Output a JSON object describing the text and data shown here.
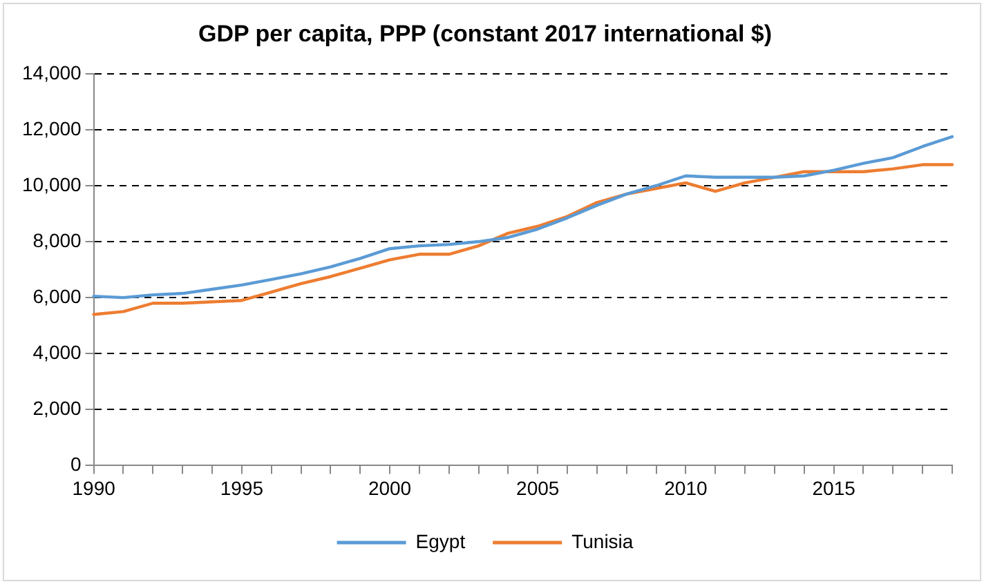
{
  "chart_data": {
    "type": "line",
    "title": "GDP per capita, PPP (constant 2017 international $)",
    "x": [
      1990,
      1991,
      1992,
      1993,
      1994,
      1995,
      1996,
      1997,
      1998,
      1999,
      2000,
      2001,
      2002,
      2003,
      2004,
      2005,
      2006,
      2007,
      2008,
      2009,
      2010,
      2011,
      2012,
      2013,
      2014,
      2015,
      2016,
      2017,
      2018,
      2019
    ],
    "series": [
      {
        "name": "Egypt",
        "color": "#5b9bd5",
        "values": [
          6050,
          6000,
          6100,
          6150,
          6300,
          6450,
          6650,
          6850,
          7100,
          7400,
          7750,
          7850,
          7900,
          8000,
          8150,
          8450,
          8850,
          9300,
          9700,
          10000,
          10350,
          10300,
          10300,
          10300,
          10350,
          10550,
          10800,
          11000,
          11400,
          11750
        ]
      },
      {
        "name": "Tunisia",
        "color": "#ed7d31",
        "values": [
          5400,
          5500,
          5800,
          5800,
          5850,
          5900,
          6200,
          6500,
          6750,
          7050,
          7350,
          7550,
          7550,
          7850,
          8300,
          8550,
          8900,
          9400,
          9700,
          9900,
          10100,
          9800,
          10100,
          10300,
          10500,
          10500,
          10500,
          10600,
          10750,
          10750
        ]
      }
    ],
    "xlim": [
      1990,
      2019
    ],
    "xticks": [
      1990,
      {
        "value": 1991,
        "label": null
      },
      {
        "value": 1992,
        "label": null
      },
      {
        "value": 1993,
        "label": null
      },
      {
        "value": 1994,
        "label": null
      },
      1995,
      {
        "value": 1996,
        "label": null
      },
      {
        "value": 1997,
        "label": null
      },
      {
        "value": 1998,
        "label": null
      },
      {
        "value": 1999,
        "label": null
      },
      2000,
      {
        "value": 2001,
        "label": null
      },
      {
        "value": 2002,
        "label": null
      },
      {
        "value": 2003,
        "label": null
      },
      {
        "value": 2004,
        "label": null
      },
      2005,
      {
        "value": 2006,
        "label": null
      },
      {
        "value": 2007,
        "label": null
      },
      {
        "value": 2008,
        "label": null
      },
      {
        "value": 2009,
        "label": null
      },
      2010,
      {
        "value": 2011,
        "label": null
      },
      {
        "value": 2012,
        "label": null
      },
      {
        "value": 2013,
        "label": null
      },
      {
        "value": 2014,
        "label": null
      },
      2015,
      {
        "value": 2016,
        "label": null
      },
      {
        "value": 2017,
        "label": null
      },
      {
        "value": 2018,
        "label": null
      },
      {
        "value": 2019,
        "label": null
      }
    ],
    "ylim": [
      0,
      14000
    ],
    "yticks": [
      0,
      {
        "value": 2000,
        "label": "2,000"
      },
      {
        "value": 4000,
        "label": "4,000"
      },
      {
        "value": 6000,
        "label": "6,000"
      },
      {
        "value": 8000,
        "label": "8,000"
      },
      {
        "value": 10000,
        "label": "10,000"
      },
      {
        "value": 12000,
        "label": "12,000"
      },
      {
        "value": 14000,
        "label": "14,000"
      }
    ],
    "grid": "y",
    "line_style": "solid",
    "marker": "none",
    "legend": "bottom"
  }
}
